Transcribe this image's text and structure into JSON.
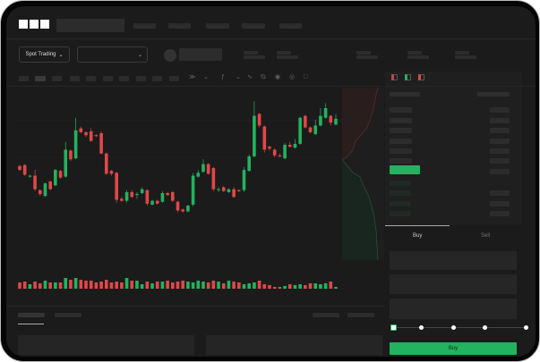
{
  "header": {
    "logo": "OKX"
  },
  "toolbar": {
    "market_type": "Spot Trading",
    "pair_select_icon": "chevron-down-icon"
  },
  "trade": {
    "tabs": [
      "Buy",
      "Sell"
    ],
    "active_tab": "Buy",
    "slider_value": 0
  },
  "colors": {
    "up": "#23b25f",
    "down": "#e04848",
    "background": "#1b1b1b",
    "accent": "#23b25f"
  },
  "chart_data": {
    "type": "candlestick",
    "fields": [
      "open",
      "close",
      "high",
      "low"
    ],
    "candles": [
      [
        68,
        64,
        69,
        63
      ],
      [
        69,
        59,
        70,
        58
      ],
      [
        57,
        58,
        59,
        56
      ],
      [
        58,
        44,
        64,
        42
      ],
      [
        43,
        39,
        44,
        37
      ],
      [
        37,
        50,
        51,
        36
      ],
      [
        52,
        44,
        53,
        43
      ],
      [
        48,
        64,
        65,
        47
      ],
      [
        63,
        56,
        64,
        55
      ],
      [
        57,
        85,
        93,
        56
      ],
      [
        84,
        75,
        85,
        73
      ],
      [
        76,
        105,
        118,
        75
      ],
      [
        107,
        103,
        109,
        102
      ],
      [
        103,
        100,
        104,
        98
      ],
      [
        104,
        94,
        107,
        93
      ],
      [
        100,
        99,
        101,
        98
      ],
      [
        102,
        81,
        104,
        80
      ],
      [
        81,
        60,
        82,
        59
      ],
      [
        63,
        60,
        64,
        58
      ],
      [
        61,
        33,
        62,
        30
      ],
      [
        34,
        32,
        36,
        31
      ],
      [
        32,
        41,
        43,
        30
      ],
      [
        41,
        36,
        43,
        35
      ],
      [
        38,
        39,
        41,
        34
      ],
      [
        40,
        44,
        46,
        39
      ],
      [
        43,
        29,
        44,
        27
      ],
      [
        28,
        32,
        33,
        27
      ],
      [
        32,
        29,
        33,
        28
      ],
      [
        31,
        40,
        42,
        30
      ],
      [
        40,
        38,
        41,
        37
      ],
      [
        41,
        32,
        42,
        31
      ],
      [
        31,
        22,
        32,
        20
      ],
      [
        23,
        21,
        24,
        20
      ],
      [
        21,
        27,
        28,
        20
      ],
      [
        28,
        58,
        61,
        26
      ],
      [
        57,
        61,
        64,
        56
      ],
      [
        62,
        70,
        75,
        61
      ],
      [
        70,
        60,
        71,
        59
      ],
      [
        66,
        44,
        67,
        42
      ],
      [
        43,
        44,
        46,
        41
      ],
      [
        46,
        42,
        47,
        41
      ],
      [
        41,
        44,
        45,
        40
      ],
      [
        44,
        36,
        46,
        35
      ],
      [
        43,
        42,
        44,
        41
      ],
      [
        43,
        64,
        67,
        41
      ],
      [
        63,
        78,
        80,
        62
      ],
      [
        78,
        120,
        135,
        77
      ],
      [
        122,
        110,
        123,
        108
      ],
      [
        109,
        85,
        110,
        82
      ],
      [
        88,
        86,
        89,
        84
      ],
      [
        85,
        79,
        86,
        77
      ],
      [
        79,
        78,
        81,
        77
      ],
      [
        76,
        90,
        92,
        75
      ],
      [
        90,
        88,
        93,
        87
      ],
      [
        87,
        91,
        96,
        86
      ],
      [
        91,
        118,
        119,
        90
      ],
      [
        120,
        108,
        121,
        107
      ],
      [
        108,
        103,
        109,
        102
      ],
      [
        101,
        110,
        116,
        100
      ],
      [
        110,
        120,
        128,
        109
      ],
      [
        118,
        128,
        133,
        117
      ],
      [
        120,
        113,
        121,
        110
      ],
      [
        111,
        117,
        122,
        110
      ]
    ],
    "volume": [
      7,
      8,
      5,
      8,
      6,
      9,
      7,
      7,
      7,
      12,
      10,
      12,
      10,
      9,
      9,
      7,
      8,
      10,
      7,
      8,
      7,
      12,
      9,
      9,
      5,
      8,
      6,
      8,
      8,
      9,
      7,
      8,
      9,
      8,
      7,
      9,
      8,
      7,
      9,
      8,
      6,
      9,
      8,
      7,
      5,
      6,
      7,
      9,
      5,
      4,
      2,
      2,
      3,
      5,
      4,
      5,
      4,
      6,
      6,
      5,
      6,
      8,
      2
    ]
  }
}
